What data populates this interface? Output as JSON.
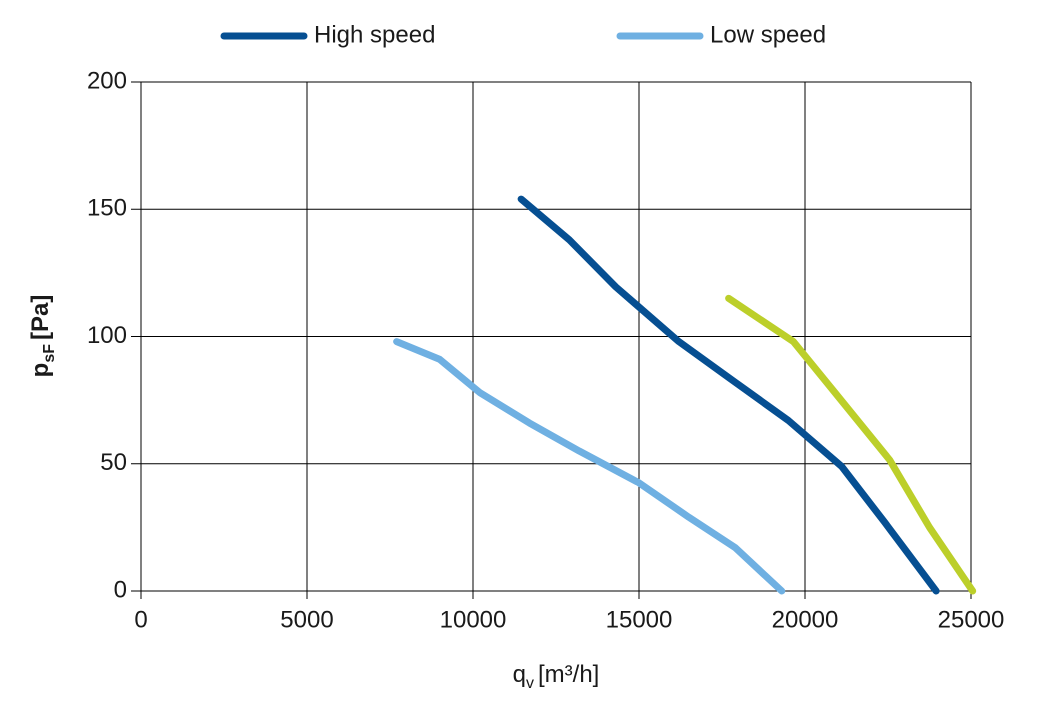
{
  "chart_data": {
    "type": "line",
    "x_label": [
      "q",
      "v",
      "[m³/h]"
    ],
    "y_label": [
      "p",
      "sF",
      "[Pa]"
    ],
    "xlim": [
      0,
      25000
    ],
    "xticks": [
      0,
      5000,
      10000,
      15000,
      20000,
      25000
    ],
    "ylim": [
      0,
      200
    ],
    "yticks": [
      0,
      50,
      100,
      150,
      200
    ],
    "grid": true,
    "legend": "top",
    "series": [
      {
        "name": "High speed",
        "color": "#064f92",
        "x": [
          11450,
          12900,
          14300,
          16200,
          17900,
          19500,
          21100,
          22400,
          23950
        ],
        "values": [
          154,
          138,
          119.5,
          98,
          82,
          67,
          49,
          27,
          0
        ]
      },
      {
        "name": "Low speed",
        "color": "#6fb0e2",
        "x": [
          7700,
          9000,
          10200,
          11700,
          13200,
          15000,
          16500,
          17900,
          19300
        ],
        "values": [
          98,
          91,
          78,
          66,
          55,
          42.5,
          29,
          17,
          0
        ]
      },
      {
        "color": "#bccf2a",
        "x": [
          17700,
          19650,
          20900,
          22550,
          23750,
          25050
        ],
        "values": [
          115,
          98,
          78,
          51.5,
          25,
          0
        ]
      }
    ]
  }
}
